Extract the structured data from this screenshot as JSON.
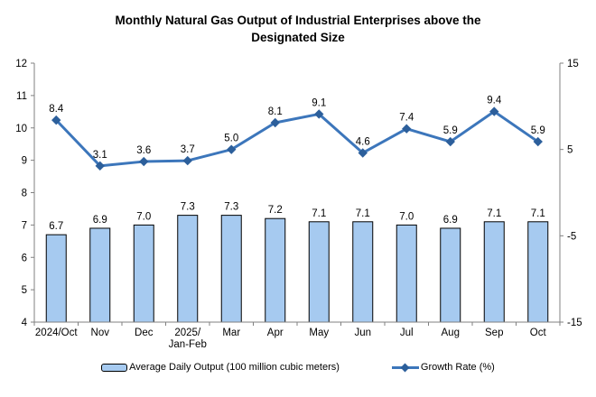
{
  "title_lines": [
    "Monthly Natural Gas Output of Industrial Enterprises above the",
    "Designated Size"
  ],
  "chart_data": {
    "type": "combo",
    "title": "Monthly Natural Gas Output of Industrial Enterprises above the Designated Size",
    "categories": [
      "2024/Oct",
      "Nov",
      "Dec",
      "2025/\nJan-Feb",
      "Mar",
      "Apr",
      "May",
      "Jun",
      "Jul",
      "Aug",
      "Sep",
      "Oct"
    ],
    "series": [
      {
        "name": "Average Daily Output (100 million cubic meters)",
        "type": "bar",
        "axis": "left",
        "values": [
          6.7,
          6.9,
          7.0,
          7.3,
          7.3,
          7.2,
          7.1,
          7.1,
          7.0,
          6.9,
          7.1,
          7.1
        ],
        "color": "#A6CAF0",
        "border_color": "#000000"
      },
      {
        "name": "Growth Rate (%)",
        "type": "line",
        "axis": "right",
        "values": [
          8.4,
          3.1,
          3.6,
          3.7,
          5.0,
          8.1,
          9.1,
          4.6,
          7.4,
          5.9,
          9.4,
          5.9
        ],
        "color": "#3C76BB",
        "marker": "diamond",
        "marker_color": "#2C5F9B"
      }
    ],
    "left_axis": {
      "min": 4,
      "max": 12,
      "step": 1,
      "ticks": [
        4,
        5,
        6,
        7,
        8,
        9,
        10,
        11,
        12
      ]
    },
    "right_axis": {
      "min": -15,
      "max": 15,
      "step": 10,
      "ticks": [
        -15,
        -5,
        5,
        15
      ]
    },
    "axis_color": "#808080",
    "grid": false,
    "legend_position": "bottom",
    "data_labels": true
  }
}
